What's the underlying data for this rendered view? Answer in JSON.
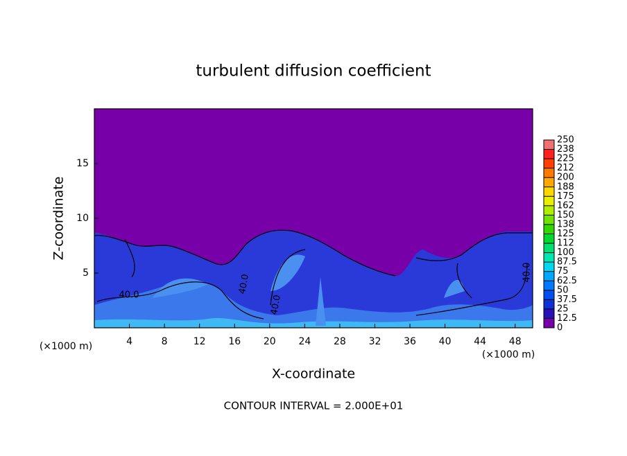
{
  "chart_data": {
    "type": "contour",
    "title": "turbulent diffusion coefficient",
    "x_label": "X-coordinate",
    "y_label": "Z-coordinate",
    "x_unit": "(×1000 m)",
    "xlim": [
      0,
      50
    ],
    "xticks": [
      4,
      8,
      12,
      16,
      20,
      24,
      28,
      32,
      36,
      40,
      44,
      48
    ],
    "ylim": [
      0,
      20
    ],
    "yticks": [
      5,
      10,
      15
    ],
    "contour_labels": [
      "40.0",
      "40.0",
      "40.0",
      "40.0"
    ],
    "footnote": "CONTOUR INTERVAL = 2.000E+01",
    "colorbar": {
      "lim": [
        0,
        250
      ],
      "ticks": [
        0,
        12.5,
        25,
        37.5,
        50,
        62.5,
        75,
        87.5,
        100,
        {
          "value": 112.5,
          "label": "112"
        },
        125,
        {
          "value": 137.5,
          "label": "138"
        },
        150,
        {
          "value": 162.5,
          "label": "162"
        },
        175,
        {
          "value": 187.5,
          "label": "188"
        },
        200,
        {
          "value": 212.5,
          "label": "212"
        },
        225,
        {
          "value": 237.5,
          "label": "238"
        },
        250
      ],
      "colors": [
        "#7800a8",
        "#2a10b8",
        "#1030d8",
        "#0050f0",
        "#0078ff",
        "#00a8ff",
        "#00d8f0",
        "#00e8b0",
        "#00e070",
        "#00d830",
        "#30d800",
        "#70e400",
        "#b0ee00",
        "#e8f000",
        "#ffd800",
        "#ffa800",
        "#ff7800",
        "#ff4000",
        "#ff2020",
        "#f07070"
      ]
    }
  }
}
